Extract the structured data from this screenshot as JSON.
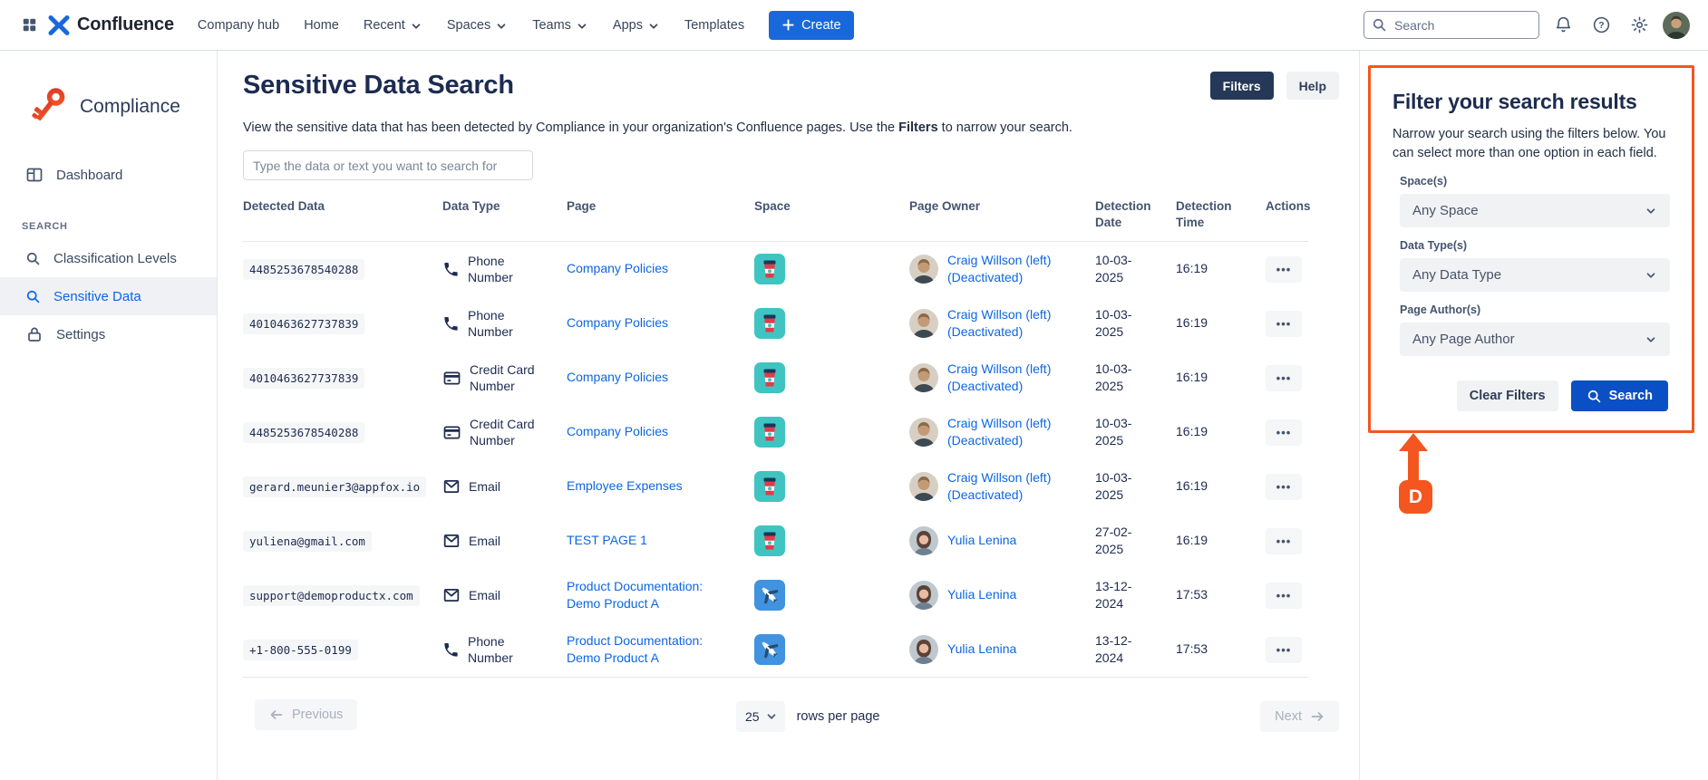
{
  "colors": {
    "accent_orange": "#F4561F",
    "link_blue": "#0C66E4",
    "brand_blue": "#1868DB",
    "search_button_blue": "#0B4FC4",
    "navy": "#1D2B50",
    "filters_button_navy": "#253858"
  },
  "top_nav": {
    "brand": "Confluence",
    "items": [
      {
        "label": "Company hub",
        "dropdown": false
      },
      {
        "label": "Home",
        "dropdown": false
      },
      {
        "label": "Recent",
        "dropdown": true
      },
      {
        "label": "Spaces",
        "dropdown": true
      },
      {
        "label": "Teams",
        "dropdown": true
      },
      {
        "label": "Apps",
        "dropdown": true
      },
      {
        "label": "Templates",
        "dropdown": false
      }
    ],
    "create_label": "Create",
    "search_placeholder": "Search"
  },
  "sidebar": {
    "app_name": "Compliance",
    "items_top": [
      {
        "label": "Dashboard",
        "icon": "dashboard-icon"
      }
    ],
    "section_label": "SEARCH",
    "items": [
      {
        "label": "Classification Levels",
        "icon": "search-icon",
        "active": false
      },
      {
        "label": "Sensitive Data",
        "icon": "search-icon",
        "active": true
      },
      {
        "label": "Settings",
        "icon": "lock-icon",
        "active": false
      }
    ]
  },
  "page": {
    "title": "Sensitive Data Search",
    "filters_button": "Filters",
    "help_button": "Help",
    "description": {
      "prefix": "View the sensitive data that has been detected by Compliance in your organization's Confluence pages. Use the ",
      "bold": "Filters",
      "suffix": " to narrow your search."
    },
    "search_placeholder": "Type the data or text you want to search for"
  },
  "table": {
    "headers": [
      "Detected Data",
      "Data Type",
      "Page",
      "Space",
      "Page Owner",
      "Detection Date",
      "Detection Time",
      "Actions"
    ],
    "actions_glyph": "•••",
    "rows": [
      {
        "detected": "4485253678540288",
        "type": "Phone Number",
        "type_icon": "phone-icon",
        "page": "Company Policies",
        "space_icon": "coffee-cup-space-icon",
        "owner": "Craig Willson (left) (Deactivated)",
        "avatar": "craig",
        "date": "10-03-2025",
        "time": "16:19"
      },
      {
        "detected": "4010463627737839",
        "type": "Phone Number",
        "type_icon": "phone-icon",
        "page": "Company Policies",
        "space_icon": "coffee-cup-space-icon",
        "owner": "Craig Willson (left) (Deactivated)",
        "avatar": "craig",
        "date": "10-03-2025",
        "time": "16:19"
      },
      {
        "detected": "4010463627737839",
        "type": "Credit Card Number",
        "type_icon": "credit-card-icon",
        "page": "Company Policies",
        "space_icon": "coffee-cup-space-icon",
        "owner": "Craig Willson (left) (Deactivated)",
        "avatar": "craig",
        "date": "10-03-2025",
        "time": "16:19"
      },
      {
        "detected": "4485253678540288",
        "type": "Credit Card Number",
        "type_icon": "credit-card-icon",
        "page": "Company Policies",
        "space_icon": "coffee-cup-space-icon",
        "owner": "Craig Willson (left) (Deactivated)",
        "avatar": "craig",
        "date": "10-03-2025",
        "time": "16:19"
      },
      {
        "detected": "gerard.meunier3@appfox.io",
        "type": "Email",
        "type_icon": "email-icon",
        "page": "Employee Expenses",
        "space_icon": "coffee-cup-space-icon",
        "owner": "Craig Willson (left) (Deactivated)",
        "avatar": "craig",
        "date": "10-03-2025",
        "time": "16:19"
      },
      {
        "detected": "yuliena@gmail.com",
        "type": "Email",
        "type_icon": "email-icon",
        "page": "TEST PAGE 1",
        "space_icon": "coffee-cup-space-icon",
        "owner": "Yulia Lenina",
        "avatar": "yulia",
        "date": "27-02-2025",
        "time": "16:19"
      },
      {
        "detected": "support@demoproductx.com",
        "type": "Email",
        "type_icon": "email-icon",
        "page": "Product Documentation: Demo Product A",
        "space_icon": "airplane-space-icon",
        "owner": "Yulia Lenina",
        "avatar": "yulia",
        "date": "13-12-2024",
        "time": "17:53"
      },
      {
        "detected": "+1-800-555-0199",
        "type": "Phone Number",
        "type_icon": "phone-icon",
        "page": "Product Documentation: Demo Product A",
        "space_icon": "airplane-space-icon",
        "owner": "Yulia Lenina",
        "avatar": "yulia",
        "date": "13-12-2024",
        "time": "17:53"
      }
    ]
  },
  "pagination": {
    "previous_label": "Previous",
    "next_label": "Next",
    "rows_per_page_value": "25",
    "rows_per_page_label": "rows per page"
  },
  "filter_panel": {
    "title": "Filter your search results",
    "description": "Narrow your search using the filters below. You can select more than one option in each field.",
    "fields": [
      {
        "label": "Space(s)",
        "value": "Any Space"
      },
      {
        "label": "Data Type(s)",
        "value": "Any Data Type"
      },
      {
        "label": "Page Author(s)",
        "value": "Any Page Author"
      }
    ],
    "clear_label": "Clear Filters",
    "search_label": "Search"
  },
  "annotation": {
    "label": "D"
  }
}
